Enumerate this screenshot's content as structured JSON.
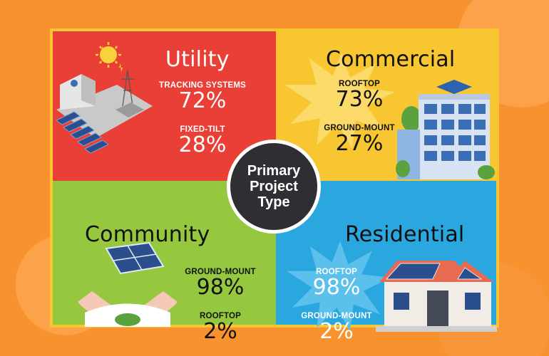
{
  "center": {
    "label": "Primary Project Type"
  },
  "quadrants": {
    "utility": {
      "title": "Utility",
      "stats": [
        {
          "label": "TRACKING SYSTEMS",
          "value": "72%"
        },
        {
          "label": "FIXED-TILT",
          "value": "28%"
        }
      ]
    },
    "commercial": {
      "title": "Commercial",
      "stats": [
        {
          "label": "ROOFTOP",
          "value": "73%"
        },
        {
          "label": "GROUND-MOUNT",
          "value": "27%"
        }
      ]
    },
    "community": {
      "title": "Community",
      "stats": [
        {
          "label": "GROUND-MOUNT",
          "value": "98%"
        },
        {
          "label": "ROOFTOP",
          "value": "2%"
        }
      ]
    },
    "residential": {
      "title": "Residential",
      "stats": [
        {
          "label": "ROOFTOP",
          "value": "98%"
        },
        {
          "label": "GROUND-MOUNT",
          "value": "2%"
        }
      ]
    }
  },
  "colors": {
    "background": "#f7922f",
    "utility": "#ea3f36",
    "commercial": "#f8c630",
    "community": "#95c83f",
    "residential": "#2ba7e0",
    "center": "#2f2f33"
  },
  "icons": {
    "utility": "solar-farm-icon",
    "commercial": "office-building-icon",
    "community": "hands-solar-panel-icon",
    "residential": "house-with-solar-icon"
  }
}
